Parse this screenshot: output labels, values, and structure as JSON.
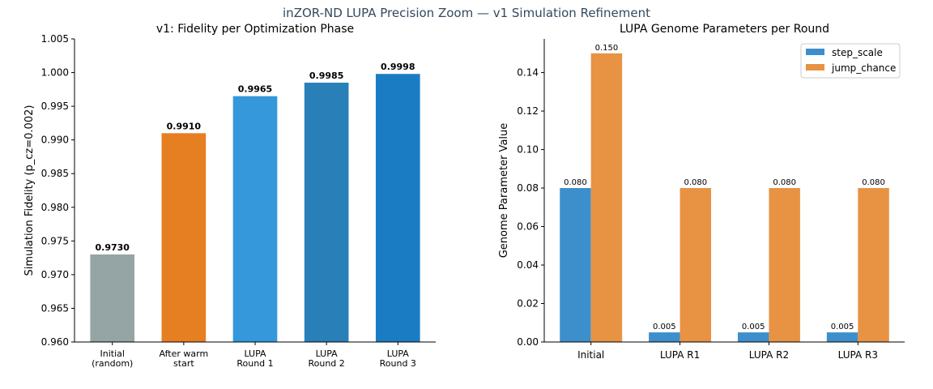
{
  "suptitle": "inZOR-ND LUPA Precision Zoom — v1 Simulation Refinement",
  "chart_data": [
    {
      "type": "bar",
      "title": "v1: Fidelity per Optimization Phase",
      "xlabel": "",
      "ylabel": "Simulation Fidelity (p_cz=0.002)",
      "categories": [
        "Initial\n(random)",
        "After warm\nstart",
        "LUPA\nRound 1",
        "LUPA\nRound 2",
        "LUPA\nRound 3"
      ],
      "values": [
        0.973,
        0.991,
        0.9965,
        0.9985,
        0.9998
      ],
      "data_labels": [
        "0.9730",
        "0.9910",
        "0.9965",
        "0.9985",
        "0.9998"
      ],
      "colors": [
        "#95a5a6",
        "#e67e22",
        "#3498db",
        "#2980b9",
        "#1a7dc4"
      ],
      "ylim": [
        0.96,
        1.005
      ],
      "yticks": [
        "0.960",
        "0.965",
        "0.970",
        "0.975",
        "0.980",
        "0.985",
        "0.990",
        "0.995",
        "1.000",
        "1.005"
      ],
      "grid": false
    },
    {
      "type": "bar",
      "title": "LUPA Genome Parameters per Round",
      "xlabel": "",
      "ylabel": "Genome Parameter Value",
      "categories": [
        "Initial",
        "LUPA R1",
        "LUPA R2",
        "LUPA R3"
      ],
      "series": [
        {
          "name": "step_scale",
          "values": [
            0.08,
            0.005,
            0.005,
            0.005
          ],
          "data_labels": [
            "0.080",
            "0.005",
            "0.005",
            "0.005"
          ],
          "color": "#3d8fcc"
        },
        {
          "name": "jump_chance",
          "values": [
            0.15,
            0.08,
            0.08,
            0.08
          ],
          "data_labels": [
            "0.150",
            "0.080",
            "0.080",
            "0.080"
          ],
          "color": "#e89244"
        }
      ],
      "ylim": [
        0,
        0.1575
      ],
      "yticks": [
        "0.00",
        "0.02",
        "0.04",
        "0.06",
        "0.08",
        "0.10",
        "0.12",
        "0.14"
      ],
      "legend": "top-right",
      "grid": false
    }
  ]
}
